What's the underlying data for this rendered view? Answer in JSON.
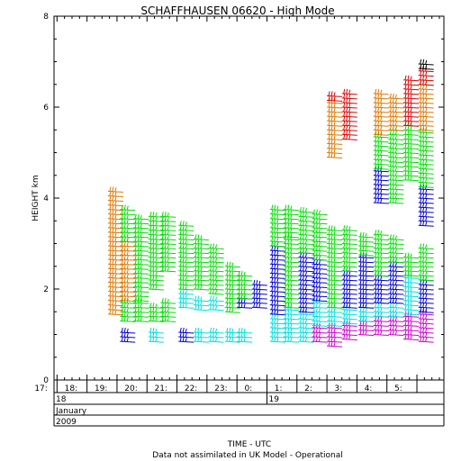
{
  "chart_data": {
    "type": "wind-barb-profile",
    "title": "SCHAFFHAUSEN 06620 - High Mode",
    "ylabel": "HEIGHT km",
    "xlabel": "TIME - UTC",
    "footer": "Data not assimilated in UK Model - Operational",
    "ylim": [
      0,
      8
    ],
    "yticks": [
      0,
      2,
      4,
      6,
      8
    ],
    "xlim": [
      16.9,
      29.9
    ],
    "xtick_labels": [
      {
        "t": 17,
        "label": "17:"
      },
      {
        "t": 18,
        "label": "18:"
      },
      {
        "t": 19,
        "label": "19:"
      },
      {
        "t": 20,
        "label": "20:"
      },
      {
        "t": 21,
        "label": "21:"
      },
      {
        "t": 22,
        "label": "22:"
      },
      {
        "t": 23,
        "label": "23:"
      },
      {
        "t": 24,
        "label": "0:"
      },
      {
        "t": 25,
        "label": "1:"
      },
      {
        "t": 26,
        "label": "2:"
      },
      {
        "t": 27,
        "label": "3:"
      },
      {
        "t": 28,
        "label": "4:"
      },
      {
        "t": 29,
        "label": "5:"
      }
    ],
    "date_rows": [
      [
        {
          "t": 16.9,
          "label": "18"
        },
        {
          "t": 24,
          "label": "19"
        }
      ],
      [
        {
          "t": 16.9,
          "label": "January"
        }
      ],
      [
        {
          "t": 16.9,
          "label": "2009"
        }
      ]
    ],
    "speed_colors": {
      "black": "#000000",
      "magenta": "#cc00cc",
      "cyan": "#00dddd",
      "blue": "#0000cc",
      "green": "#00dd00",
      "orange": "#dd7700",
      "red": "#dd0000"
    },
    "columns": [
      {
        "t": 18.7,
        "segments": [
          {
            "from": 1.45,
            "to": 4.15,
            "color": "orange"
          }
        ]
      },
      {
        "t": 19.1,
        "segments": [
          {
            "from": 0.85,
            "to": 1.1,
            "color": "blue"
          },
          {
            "from": 1.3,
            "to": 1.75,
            "color": "green"
          },
          {
            "from": 1.75,
            "to": 3.05,
            "color": "orange"
          },
          {
            "from": 3.05,
            "to": 3.75,
            "color": "green"
          }
        ]
      },
      {
        "t": 19.55,
        "segments": [
          {
            "from": 1.3,
            "to": 1.75,
            "color": "green"
          },
          {
            "from": 1.75,
            "to": 3.55,
            "color": "green"
          }
        ]
      },
      {
        "t": 20.05,
        "segments": [
          {
            "from": 0.85,
            "to": 1.05,
            "color": "cyan"
          },
          {
            "from": 1.3,
            "to": 1.65,
            "color": "green"
          },
          {
            "from": 2.0,
            "to": 3.6,
            "color": "green"
          }
        ]
      },
      {
        "t": 20.45,
        "segments": [
          {
            "from": 1.3,
            "to": 1.7,
            "color": "green"
          },
          {
            "from": 2.4,
            "to": 3.65,
            "color": "green"
          }
        ]
      },
      {
        "t": 21.05,
        "segments": [
          {
            "from": 0.85,
            "to": 1.1,
            "color": "blue"
          },
          {
            "from": 1.6,
            "to": 1.9,
            "color": "cyan"
          },
          {
            "from": 2.0,
            "to": 3.45,
            "color": "green"
          }
        ]
      },
      {
        "t": 21.55,
        "segments": [
          {
            "from": 0.85,
            "to": 1.1,
            "color": "cyan"
          },
          {
            "from": 1.55,
            "to": 1.8,
            "color": "cyan"
          },
          {
            "from": 2.0,
            "to": 3.1,
            "color": "green"
          }
        ]
      },
      {
        "t": 22.05,
        "segments": [
          {
            "from": 0.85,
            "to": 1.1,
            "color": "cyan"
          },
          {
            "from": 1.55,
            "to": 1.75,
            "color": "cyan"
          },
          {
            "from": 1.9,
            "to": 2.9,
            "color": "green"
          }
        ]
      },
      {
        "t": 22.6,
        "segments": [
          {
            "from": 0.85,
            "to": 1.05,
            "color": "cyan"
          },
          {
            "from": 1.5,
            "to": 2.5,
            "color": "green"
          }
        ]
      },
      {
        "t": 23.0,
        "segments": [
          {
            "from": 0.85,
            "to": 1.05,
            "color": "cyan"
          },
          {
            "from": 1.6,
            "to": 1.8,
            "color": "blue"
          },
          {
            "from": 1.8,
            "to": 2.3,
            "color": "green"
          }
        ]
      },
      {
        "t": 23.5,
        "segments": [
          {
            "from": 1.6,
            "to": 2.1,
            "color": "blue"
          }
        ]
      },
      {
        "t": 24.1,
        "segments": [
          {
            "from": 0.85,
            "to": 1.45,
            "color": "cyan"
          },
          {
            "from": 1.45,
            "to": 2.95,
            "color": "blue"
          },
          {
            "from": 2.95,
            "to": 3.75,
            "color": "green"
          }
        ]
      },
      {
        "t": 24.55,
        "segments": [
          {
            "from": 0.85,
            "to": 1.6,
            "color": "cyan"
          },
          {
            "from": 1.6,
            "to": 3.15,
            "color": "green"
          },
          {
            "from": 3.15,
            "to": 3.75,
            "color": "green"
          }
        ]
      },
      {
        "t": 25.05,
        "segments": [
          {
            "from": 0.85,
            "to": 1.5,
            "color": "cyan"
          },
          {
            "from": 1.5,
            "to": 2.8,
            "color": "blue"
          },
          {
            "from": 2.8,
            "to": 3.7,
            "color": "green"
          }
        ]
      },
      {
        "t": 25.5,
        "segments": [
          {
            "from": 0.85,
            "to": 1.2,
            "color": "magenta"
          },
          {
            "from": 1.2,
            "to": 1.75,
            "color": "cyan"
          },
          {
            "from": 1.75,
            "to": 2.65,
            "color": "blue"
          },
          {
            "from": 2.65,
            "to": 3.65,
            "color": "green"
          }
        ]
      },
      {
        "t": 26.0,
        "segments": [
          {
            "from": 0.75,
            "to": 1.2,
            "color": "magenta"
          },
          {
            "from": 1.2,
            "to": 1.6,
            "color": "cyan"
          },
          {
            "from": 1.6,
            "to": 3.35,
            "color": "green"
          },
          {
            "from": 4.9,
            "to": 6.15,
            "color": "orange"
          },
          {
            "from": 6.15,
            "to": 6.3,
            "color": "red"
          }
        ]
      },
      {
        "t": 26.5,
        "segments": [
          {
            "from": 0.9,
            "to": 1.25,
            "color": "magenta"
          },
          {
            "from": 1.25,
            "to": 1.6,
            "color": "cyan"
          },
          {
            "from": 1.6,
            "to": 2.4,
            "color": "blue"
          },
          {
            "from": 2.4,
            "to": 3.3,
            "color": "green"
          },
          {
            "from": 5.3,
            "to": 6.35,
            "color": "red"
          }
        ]
      },
      {
        "t": 27.05,
        "segments": [
          {
            "from": 1.0,
            "to": 1.3,
            "color": "magenta"
          },
          {
            "from": 1.3,
            "to": 1.6,
            "color": "cyan"
          },
          {
            "from": 1.6,
            "to": 2.75,
            "color": "blue"
          },
          {
            "from": 2.75,
            "to": 3.2,
            "color": "green"
          }
        ]
      },
      {
        "t": 27.55,
        "segments": [
          {
            "from": 1.0,
            "to": 1.4,
            "color": "magenta"
          },
          {
            "from": 1.4,
            "to": 1.7,
            "color": "cyan"
          },
          {
            "from": 1.7,
            "to": 2.3,
            "color": "blue"
          },
          {
            "from": 2.3,
            "to": 3.2,
            "color": "green"
          },
          {
            "from": 3.9,
            "to": 4.65,
            "color": "blue"
          },
          {
            "from": 4.65,
            "to": 5.4,
            "color": "green"
          },
          {
            "from": 5.4,
            "to": 6.3,
            "color": "orange"
          }
        ]
      },
      {
        "t": 28.05,
        "segments": [
          {
            "from": 1.0,
            "to": 1.4,
            "color": "magenta"
          },
          {
            "from": 1.4,
            "to": 1.7,
            "color": "cyan"
          },
          {
            "from": 1.7,
            "to": 2.6,
            "color": "blue"
          },
          {
            "from": 2.6,
            "to": 3.1,
            "color": "green"
          },
          {
            "from": 3.9,
            "to": 5.5,
            "color": "green"
          },
          {
            "from": 5.5,
            "to": 6.2,
            "color": "orange"
          }
        ]
      },
      {
        "t": 28.55,
        "segments": [
          {
            "from": 0.9,
            "to": 1.45,
            "color": "magenta"
          },
          {
            "from": 1.45,
            "to": 2.3,
            "color": "cyan"
          },
          {
            "from": 2.3,
            "to": 2.75,
            "color": "green"
          },
          {
            "from": 4.4,
            "to": 5.6,
            "color": "green"
          },
          {
            "from": 5.6,
            "to": 6.65,
            "color": "red"
          }
        ]
      },
      {
        "t": 29.05,
        "segments": [
          {
            "from": 0.85,
            "to": 1.5,
            "color": "magenta"
          },
          {
            "from": 1.5,
            "to": 2.2,
            "color": "blue"
          },
          {
            "from": 2.2,
            "to": 2.9,
            "color": "green"
          },
          {
            "from": 3.4,
            "to": 4.25,
            "color": "blue"
          },
          {
            "from": 4.25,
            "to": 5.5,
            "color": "green"
          },
          {
            "from": 5.5,
            "to": 6.5,
            "color": "orange"
          },
          {
            "from": 6.5,
            "to": 6.85,
            "color": "red"
          },
          {
            "from": 6.85,
            "to": 6.95,
            "color": "black"
          }
        ]
      }
    ]
  }
}
